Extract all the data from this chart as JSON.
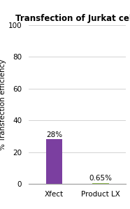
{
  "title": "Transfection of Jurkat cells",
  "categories": [
    "Xfect",
    "Product LX"
  ],
  "values": [
    28,
    0.65
  ],
  "bar_colors": [
    "#7B3FA0",
    "#8DB84A"
  ],
  "bar_labels": [
    "28%",
    "0.65%"
  ],
  "ylabel": "% Transfection efficiency",
  "ylim": [
    0,
    100
  ],
  "yticks": [
    0,
    20,
    40,
    60,
    80,
    100
  ],
  "background_color": "#ffffff",
  "title_fontsize": 8.5,
  "label_fontsize": 7.5,
  "tick_fontsize": 7.5,
  "annotation_fontsize": 7.5,
  "bar_width": 0.35
}
